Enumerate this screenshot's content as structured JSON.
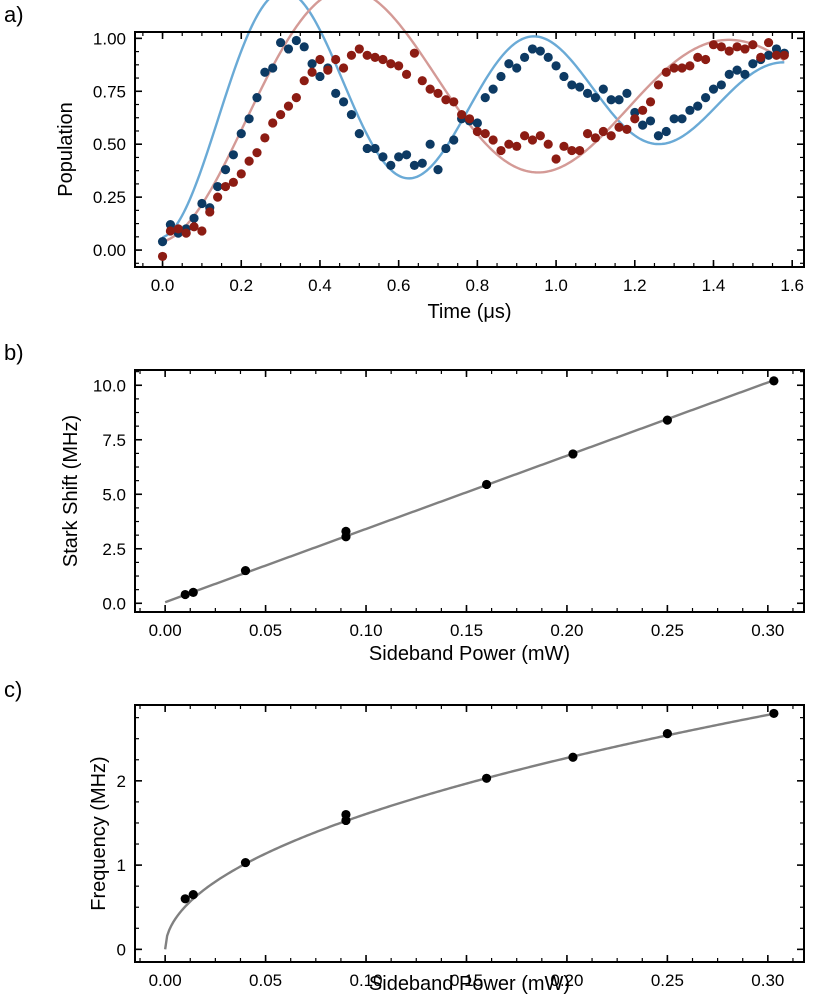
{
  "chart_data": [
    {
      "type": "scatter",
      "panel_label": "a)",
      "xlabel": "Time (μs)",
      "ylabel": "Population",
      "xlim": [
        -0.07,
        1.63
      ],
      "ylim": [
        -0.08,
        1.03
      ],
      "xticks": [
        0.0,
        0.2,
        0.4,
        0.6,
        0.8,
        1.0,
        1.2,
        1.4,
        1.6
      ],
      "xtick_labels": [
        "0.0",
        "0.2",
        "0.4",
        "0.6",
        "0.8",
        "1.0",
        "1.2",
        "1.4",
        "1.6"
      ],
      "yticks": [
        0.0,
        0.25,
        0.5,
        0.75,
        1.0
      ],
      "ytick_labels": [
        "0.00",
        "0.25",
        "0.50",
        "0.75",
        "1.00"
      ],
      "series": [
        {
          "name": "blue data",
          "color": "#0d3a63",
          "fit_color": "#6aaad6",
          "x": [
            0.0,
            0.02,
            0.04,
            0.06,
            0.08,
            0.1,
            0.12,
            0.14,
            0.16,
            0.18,
            0.2,
            0.22,
            0.24,
            0.26,
            0.28,
            0.3,
            0.32,
            0.34,
            0.36,
            0.38,
            0.4,
            0.42,
            0.44,
            0.46,
            0.48,
            0.5,
            0.52,
            0.54,
            0.56,
            0.58,
            0.6,
            0.62,
            0.64,
            0.66,
            0.68,
            0.7,
            0.72,
            0.74,
            0.76,
            0.78,
            0.8,
            0.82,
            0.84,
            0.86,
            0.88,
            0.9,
            0.92,
            0.94,
            0.96,
            0.98,
            1.0,
            1.02,
            1.04,
            1.06,
            1.08,
            1.1,
            1.12,
            1.14,
            1.16,
            1.18,
            1.2,
            1.22,
            1.24,
            1.26,
            1.28,
            1.3,
            1.32,
            1.34,
            1.36,
            1.38,
            1.4,
            1.42,
            1.44,
            1.46,
            1.48,
            1.5,
            1.52,
            1.54,
            1.56,
            1.58
          ],
          "y": [
            0.04,
            0.12,
            0.08,
            0.1,
            0.15,
            0.22,
            0.2,
            0.3,
            0.38,
            0.45,
            0.55,
            0.62,
            0.72,
            0.84,
            0.86,
            0.98,
            0.95,
            0.99,
            0.96,
            0.88,
            0.82,
            0.86,
            0.74,
            0.7,
            0.64,
            0.55,
            0.48,
            0.48,
            0.44,
            0.4,
            0.44,
            0.45,
            0.4,
            0.41,
            0.5,
            0.38,
            0.48,
            0.52,
            0.62,
            0.61,
            0.6,
            0.72,
            0.76,
            0.82,
            0.88,
            0.86,
            0.91,
            0.95,
            0.94,
            0.91,
            0.87,
            0.82,
            0.78,
            0.77,
            0.74,
            0.72,
            0.76,
            0.71,
            0.71,
            0.74,
            0.65,
            0.59,
            0.61,
            0.54,
            0.56,
            0.62,
            0.62,
            0.66,
            0.68,
            0.72,
            0.76,
            0.78,
            0.83,
            0.85,
            0.83,
            0.88,
            0.9,
            0.92,
            0.95,
            0.93
          ]
        },
        {
          "name": "red data",
          "color": "#8c1c13",
          "fit_color": "#d49a96",
          "x": [
            0.0,
            0.02,
            0.04,
            0.06,
            0.08,
            0.1,
            0.12,
            0.14,
            0.16,
            0.18,
            0.2,
            0.22,
            0.24,
            0.26,
            0.28,
            0.3,
            0.32,
            0.34,
            0.36,
            0.38,
            0.4,
            0.42,
            0.44,
            0.46,
            0.48,
            0.5,
            0.52,
            0.54,
            0.56,
            0.58,
            0.6,
            0.62,
            0.64,
            0.66,
            0.68,
            0.7,
            0.72,
            0.74,
            0.76,
            0.78,
            0.8,
            0.82,
            0.84,
            0.86,
            0.88,
            0.9,
            0.92,
            0.94,
            0.96,
            0.98,
            1.0,
            1.02,
            1.04,
            1.06,
            1.08,
            1.1,
            1.12,
            1.14,
            1.16,
            1.18,
            1.2,
            1.22,
            1.24,
            1.26,
            1.28,
            1.3,
            1.32,
            1.34,
            1.36,
            1.38,
            1.4,
            1.42,
            1.44,
            1.46,
            1.48,
            1.5,
            1.52,
            1.54,
            1.56,
            1.58
          ],
          "y": [
            -0.03,
            0.09,
            0.1,
            0.08,
            0.11,
            0.09,
            0.18,
            0.25,
            0.3,
            0.32,
            0.36,
            0.42,
            0.46,
            0.53,
            0.6,
            0.64,
            0.68,
            0.72,
            0.8,
            0.84,
            0.9,
            0.85,
            0.9,
            0.86,
            0.92,
            0.95,
            0.92,
            0.91,
            0.9,
            0.88,
            0.87,
            0.83,
            0.93,
            0.8,
            0.76,
            0.74,
            0.71,
            0.7,
            0.64,
            0.62,
            0.56,
            0.55,
            0.52,
            0.47,
            0.5,
            0.49,
            0.54,
            0.52,
            0.54,
            0.5,
            0.43,
            0.49,
            0.47,
            0.47,
            0.55,
            0.53,
            0.56,
            0.54,
            0.58,
            0.57,
            0.62,
            0.66,
            0.7,
            0.78,
            0.84,
            0.86,
            0.86,
            0.87,
            0.91,
            0.9,
            0.97,
            0.96,
            0.94,
            0.96,
            0.95,
            0.97,
            0.91,
            0.98,
            0.92,
            0.92
          ]
        }
      ]
    },
    {
      "type": "scatter",
      "panel_label": "b)",
      "xlabel": "Sideband Power (mW)",
      "ylabel": "Stark Shift (MHz)",
      "xlim": [
        -0.015,
        0.318
      ],
      "ylim": [
        -0.4,
        10.7
      ],
      "xticks": [
        0.0,
        0.05,
        0.1,
        0.15,
        0.2,
        0.25,
        0.3
      ],
      "xtick_labels": [
        "0.00",
        "0.05",
        "0.10",
        "0.15",
        "0.20",
        "0.25",
        "0.30"
      ],
      "yticks": [
        0.0,
        2.5,
        5.0,
        7.5,
        10.0
      ],
      "ytick_labels": [
        "0.0",
        "2.5",
        "5.0",
        "7.5",
        "10.0"
      ],
      "points": {
        "x": [
          0.01,
          0.014,
          0.04,
          0.09,
          0.09,
          0.16,
          0.203,
          0.25,
          0.303
        ],
        "y": [
          0.4,
          0.5,
          1.5,
          3.3,
          3.05,
          5.45,
          6.85,
          8.4,
          10.2
        ]
      },
      "fit": {
        "kind": "linear",
        "slope": 33.6,
        "intercept": 0.05,
        "x_range": [
          0.0,
          0.303
        ],
        "color": "#808080"
      }
    },
    {
      "type": "scatter",
      "panel_label": "c)",
      "xlabel": "Sideband Power (mW)",
      "ylabel": "Frequency (MHz)",
      "xlim": [
        -0.015,
        0.318
      ],
      "ylim": [
        -0.15,
        2.9
      ],
      "xticks": [
        0.0,
        0.05,
        0.1,
        0.15,
        0.2,
        0.25,
        0.3
      ],
      "xtick_labels": [
        "0.00",
        "0.05",
        "0.10",
        "0.15",
        "0.20",
        "0.25",
        "0.30"
      ],
      "yticks": [
        0,
        1,
        2
      ],
      "ytick_labels": [
        "0",
        "1",
        "2"
      ],
      "points": {
        "x": [
          0.01,
          0.014,
          0.04,
          0.09,
          0.09,
          0.16,
          0.203,
          0.25,
          0.303
        ],
        "y": [
          0.6,
          0.65,
          1.03,
          1.6,
          1.53,
          2.03,
          2.28,
          2.56,
          2.8
        ]
      },
      "fit": {
        "kind": "sqrt",
        "coefficient": 5.08,
        "x_range": [
          0.0,
          0.303
        ],
        "color": "#808080"
      }
    }
  ]
}
